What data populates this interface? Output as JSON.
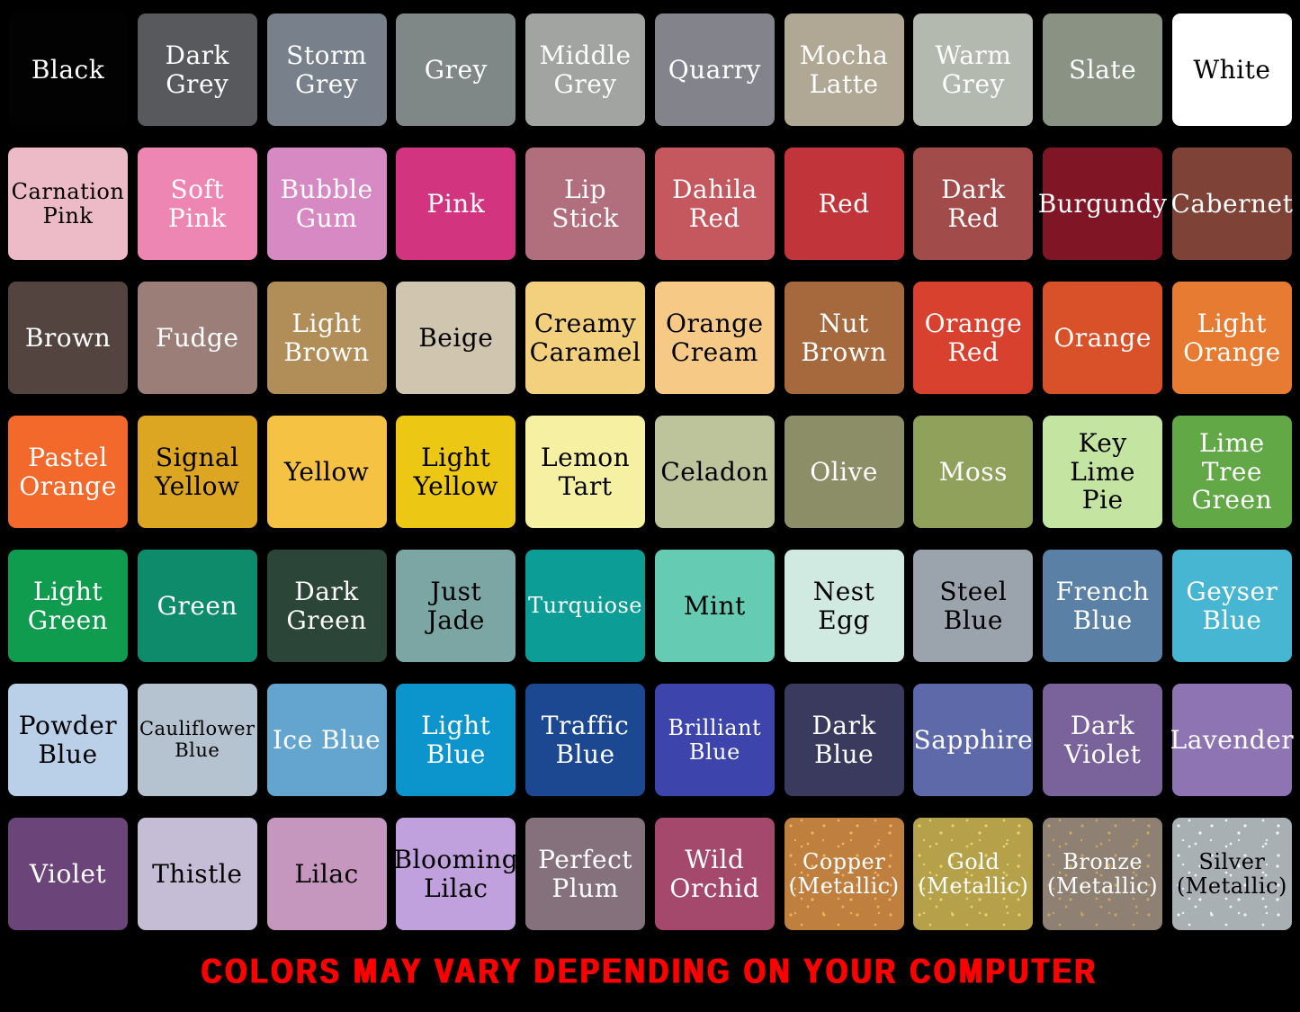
{
  "chart_data": {
    "type": "table",
    "title": "",
    "layout_hints": {
      "columns": 10,
      "rows": 7,
      "background": "#000000"
    },
    "swatches": [
      {
        "label": "Black",
        "bg": "#020202",
        "text": "#ffffff"
      },
      {
        "label": "Dark Grey",
        "bg": "#58595d",
        "text": "#ffffff"
      },
      {
        "label": "Storm Grey",
        "bg": "#78818b",
        "text": "#ffffff"
      },
      {
        "label": "Grey",
        "bg": "#7f8887",
        "text": "#ffffff"
      },
      {
        "label": "Middle Grey",
        "bg": "#a2a4a2",
        "text": "#ffffff"
      },
      {
        "label": "Quarry",
        "bg": "#83848b",
        "text": "#ffffff"
      },
      {
        "label": "Mocha Latte",
        "bg": "#b0a795",
        "text": "#ffffff"
      },
      {
        "label": "Warm Grey",
        "bg": "#b4b9af",
        "text": "#ffffff"
      },
      {
        "label": "Slate",
        "bg": "#8a9284",
        "text": "#ffffff"
      },
      {
        "label": "White",
        "bg": "#ffffff",
        "text": "#000000"
      },
      {
        "label": "Carnation Pink",
        "bg": "#edbac7",
        "text": "#000000"
      },
      {
        "label": "Soft Pink",
        "bg": "#ee86b3",
        "text": "#ffffff"
      },
      {
        "label": "Bubble Gum",
        "bg": "#d689c2",
        "text": "#ffffff"
      },
      {
        "label": "Pink",
        "bg": "#d23480",
        "text": "#ffffff"
      },
      {
        "label": "Lip Stick",
        "bg": "#b16e7d",
        "text": "#ffffff"
      },
      {
        "label": "Dahila Red",
        "bg": "#c5575f",
        "text": "#ffffff"
      },
      {
        "label": "Red",
        "bg": "#c0343a",
        "text": "#ffffff"
      },
      {
        "label": "Dark Red",
        "bg": "#a14b4b",
        "text": "#ffffff"
      },
      {
        "label": "Burgundy",
        "bg": "#7f1525",
        "text": "#ffffff"
      },
      {
        "label": "Cabernet",
        "bg": "#7e4237",
        "text": "#ffffff"
      },
      {
        "label": "Brown",
        "bg": "#534440",
        "text": "#ffffff"
      },
      {
        "label": "Fudge",
        "bg": "#9b7e78",
        "text": "#ffffff"
      },
      {
        "label": "Light Brown",
        "bg": "#b18e58",
        "text": "#ffffff"
      },
      {
        "label": "Beige",
        "bg": "#d0c5af",
        "text": "#000000"
      },
      {
        "label": "Creamy Caramel",
        "bg": "#f2d07e",
        "text": "#000000"
      },
      {
        "label": "Orange Cream",
        "bg": "#f6c987",
        "text": "#000000"
      },
      {
        "label": "Nut Brown",
        "bg": "#a6693d",
        "text": "#ffffff"
      },
      {
        "label": "Orange Red",
        "bg": "#d9412f",
        "text": "#ffffff"
      },
      {
        "label": "Orange",
        "bg": "#d95129",
        "text": "#ffffff"
      },
      {
        "label": "Light Orange",
        "bg": "#e67b31",
        "text": "#ffffff"
      },
      {
        "label": "Pastel Orange",
        "bg": "#f2692b",
        "text": "#ffffff"
      },
      {
        "label": "Signal Yellow",
        "bg": "#dca522",
        "text": "#000000"
      },
      {
        "label": "Yellow",
        "bg": "#f5c243",
        "text": "#000000"
      },
      {
        "label": "Light Yellow",
        "bg": "#ecc714",
        "text": "#000000"
      },
      {
        "label": "Lemon Tart",
        "bg": "#f5f0a2",
        "text": "#000000"
      },
      {
        "label": "Celadon",
        "bg": "#bdc39b",
        "text": "#000000"
      },
      {
        "label": "Olive",
        "bg": "#8c8e68",
        "text": "#ffffff"
      },
      {
        "label": "Moss",
        "bg": "#90a15b",
        "text": "#ffffff"
      },
      {
        "label": "Key Lime Pie",
        "bg": "#c4e4a2",
        "text": "#000000"
      },
      {
        "label": "Lime Tree Green",
        "bg": "#63a847",
        "text": "#ffffff"
      },
      {
        "label": "Light Green",
        "bg": "#109c4f",
        "text": "#ffffff"
      },
      {
        "label": "Green",
        "bg": "#0e8b6b",
        "text": "#ffffff"
      },
      {
        "label": "Dark Green",
        "bg": "#2b4539",
        "text": "#ffffff"
      },
      {
        "label": "Just Jade",
        "bg": "#7ca6a4",
        "text": "#000000"
      },
      {
        "label": "Turquiose",
        "bg": "#0c9d97",
        "text": "#ffffff"
      },
      {
        "label": "Mint",
        "bg": "#65ccb3",
        "text": "#000000"
      },
      {
        "label": "Nest Egg",
        "bg": "#d0e9e1",
        "text": "#000000"
      },
      {
        "label": "Steel Blue",
        "bg": "#9ba4ac",
        "text": "#000000"
      },
      {
        "label": "French Blue",
        "bg": "#5b80a5",
        "text": "#ffffff"
      },
      {
        "label": "Geyser Blue",
        "bg": "#46b6d2",
        "text": "#ffffff"
      },
      {
        "label": "Powder Blue",
        "bg": "#bad0e9",
        "text": "#000000"
      },
      {
        "label": "Cauliflower Blue",
        "bg": "#b5c3d0",
        "text": "#000000"
      },
      {
        "label": "Ice Blue",
        "bg": "#64a5d0",
        "text": "#ffffff"
      },
      {
        "label": "Light Blue",
        "bg": "#0c94cd",
        "text": "#ffffff"
      },
      {
        "label": "Traffic Blue",
        "bg": "#1c4892",
        "text": "#ffffff"
      },
      {
        "label": "Brilliant Blue",
        "bg": "#3d44ac",
        "text": "#ffffff"
      },
      {
        "label": "Dark Blue",
        "bg": "#393a5d",
        "text": "#ffffff"
      },
      {
        "label": "Sapphire",
        "bg": "#5d69a9",
        "text": "#ffffff"
      },
      {
        "label": "Dark Violet",
        "bg": "#7a639b",
        "text": "#ffffff"
      },
      {
        "label": "Lavender",
        "bg": "#8f74b4",
        "text": "#ffffff"
      },
      {
        "label": "Violet",
        "bg": "#6b447a",
        "text": "#ffffff"
      },
      {
        "label": "Thistle",
        "bg": "#c4bdd5",
        "text": "#000000"
      },
      {
        "label": "Lilac",
        "bg": "#c596be",
        "text": "#000000"
      },
      {
        "label": "Blooming Lilac",
        "bg": "#c0a0dd",
        "text": "#000000"
      },
      {
        "label": "Perfect Plum",
        "bg": "#84717b",
        "text": "#ffffff"
      },
      {
        "label": "Wild Orchid",
        "bg": "#a4496c",
        "text": "#ffffff"
      },
      {
        "label": "Copper (Metallic)",
        "bg": "#be7f3f",
        "text": "#ffffff",
        "speckle": "#f0b25e"
      },
      {
        "label": "Gold (Metallic)",
        "bg": "#b4a149",
        "text": "#ffffff",
        "speckle": "#e8d36a"
      },
      {
        "label": "Bronze (Metallic)",
        "bg": "#8e8173",
        "text": "#ffffff",
        "speckle": "#c9a55e"
      },
      {
        "label": "Silver (Metallic)",
        "bg": "#a9b0b4",
        "text": "#000000",
        "speckle": "#eef3f5"
      }
    ]
  },
  "footer": {
    "text": "COLORS MAY VARY DEPENDING ON YOUR COMPUTER",
    "color": "#ff0000"
  }
}
